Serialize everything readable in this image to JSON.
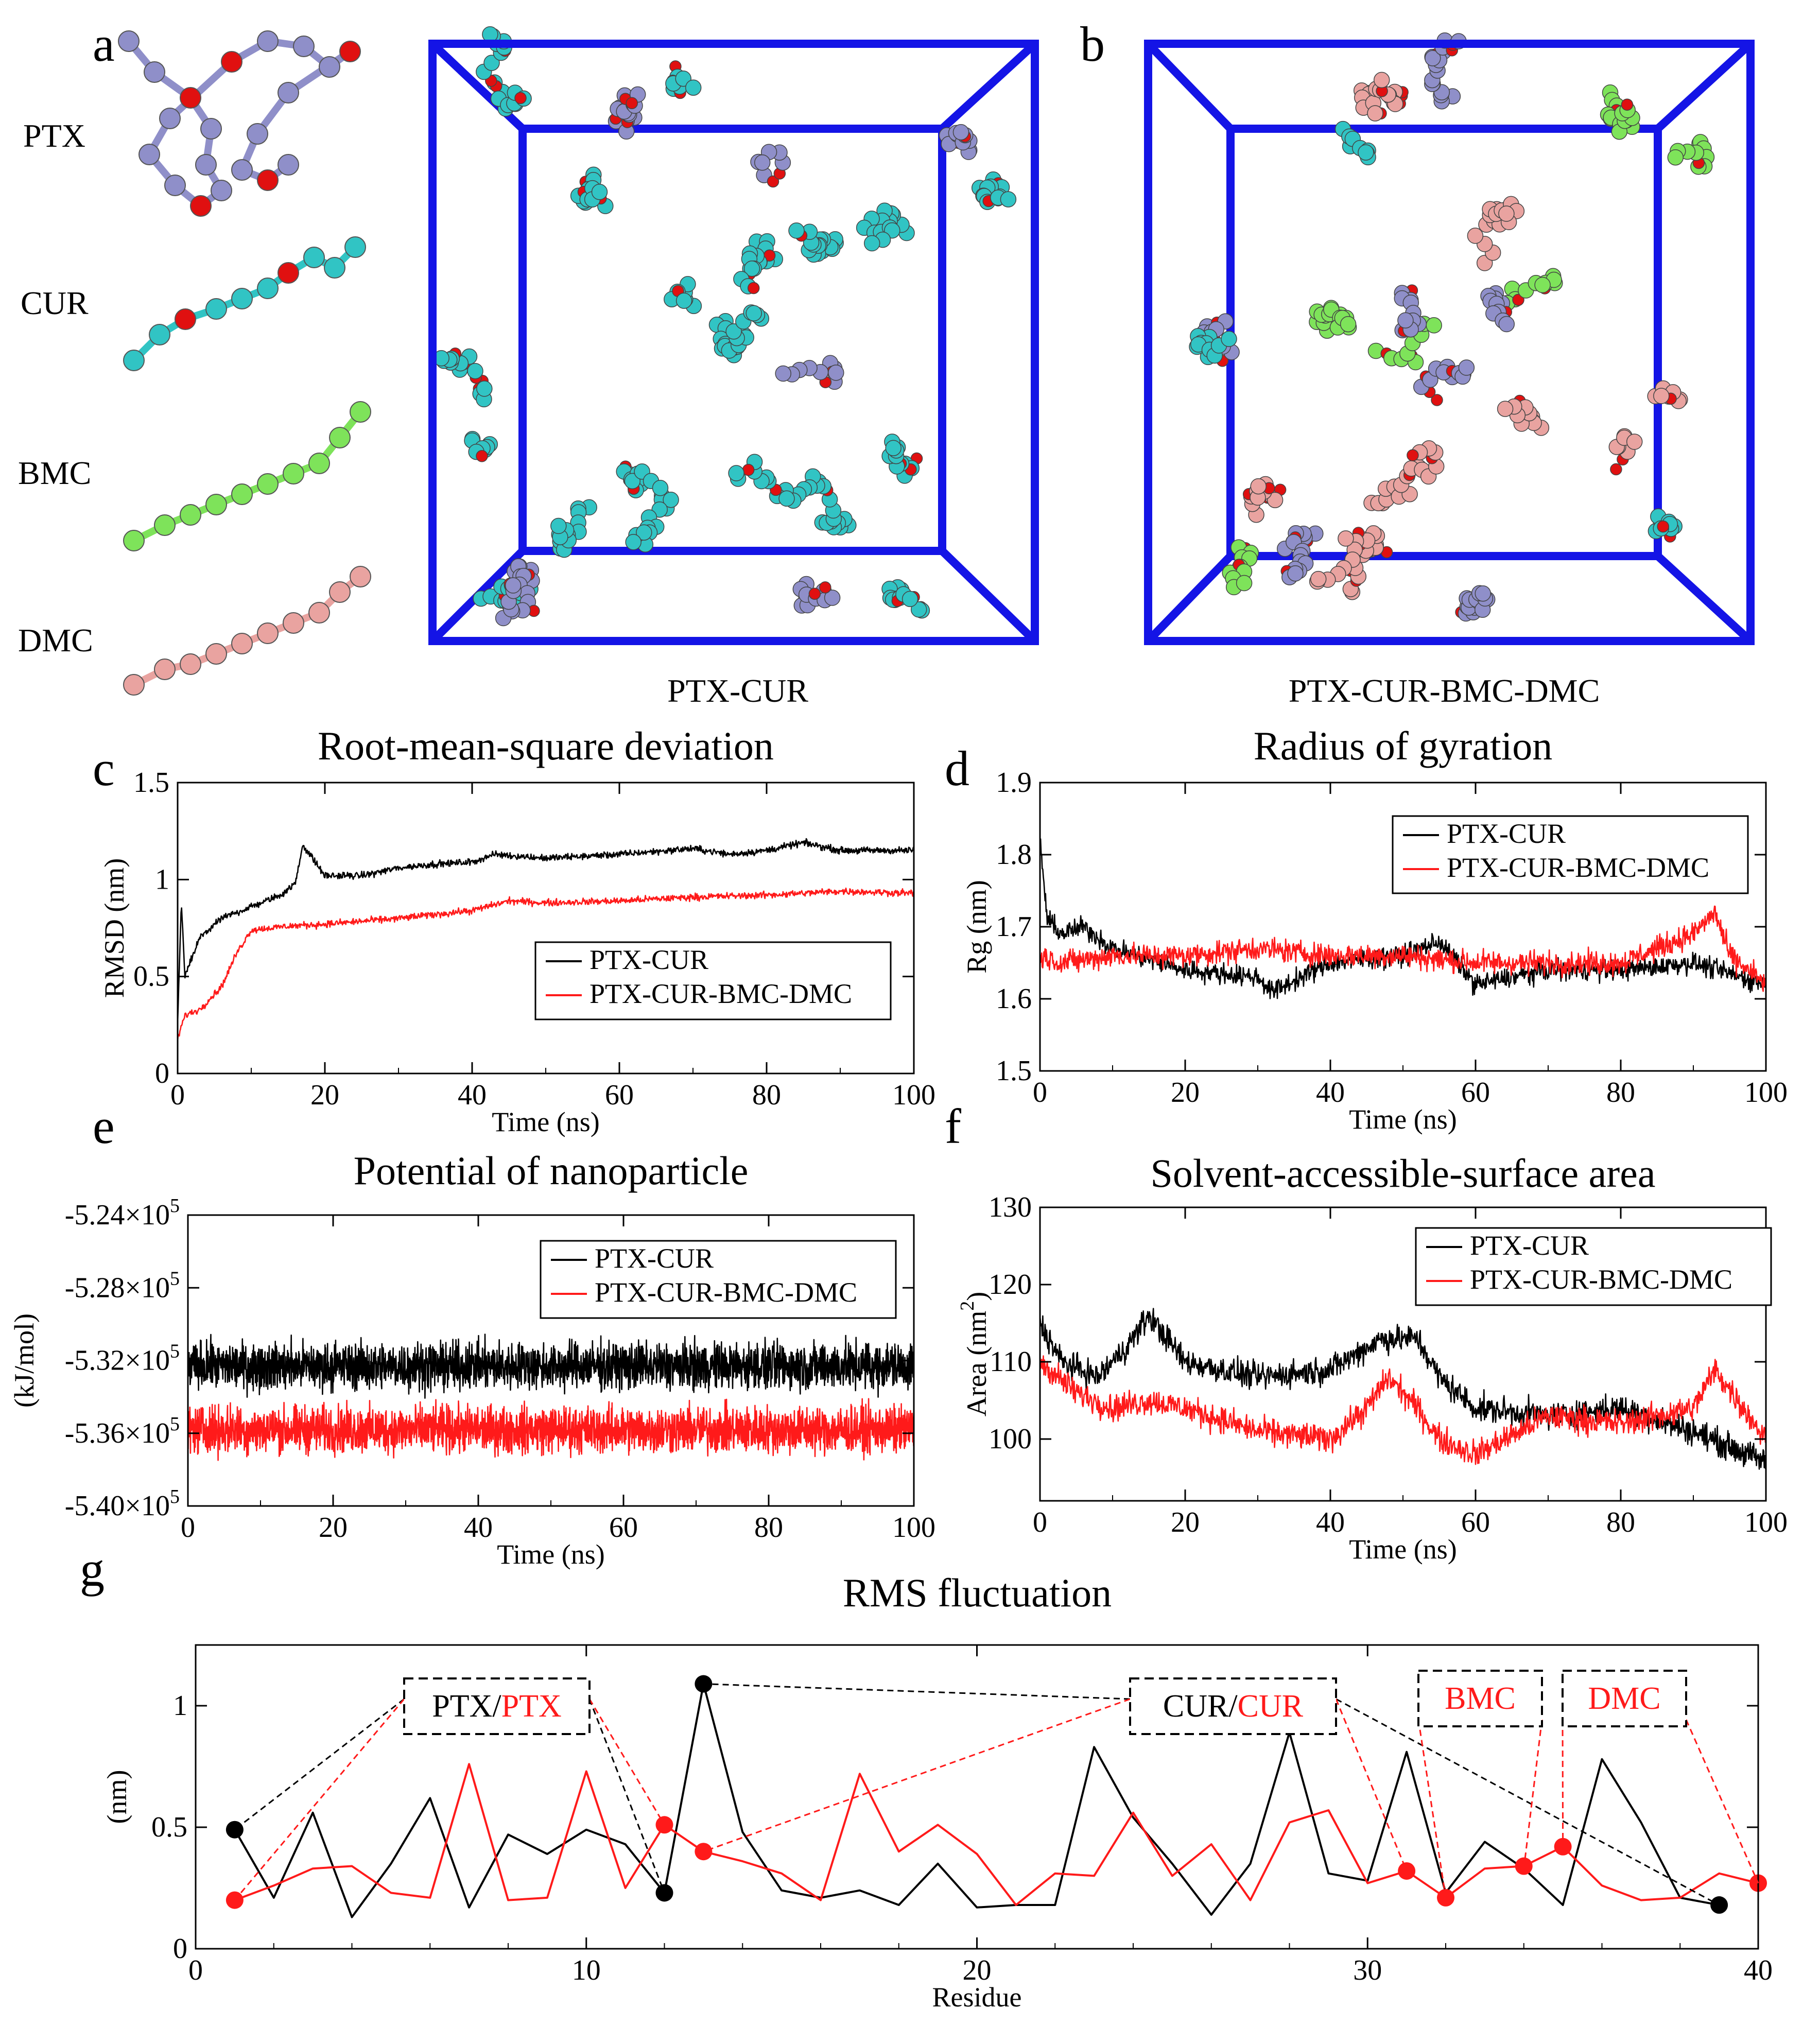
{
  "panel_labels": [
    "a",
    "b",
    "c",
    "d",
    "e",
    "f",
    "g"
  ],
  "molecules": [
    {
      "name": "PTX",
      "color": "#8f8fc9"
    },
    {
      "name": "CUR",
      "color": "#31c4c4"
    },
    {
      "name": "BMC",
      "color": "#7ee35a"
    },
    {
      "name": "DMC",
      "color": "#e9a3a0"
    }
  ],
  "boxes": {
    "a_caption": "PTX-CUR",
    "b_caption": "PTX-CUR-BMC-DMC",
    "frame_color": "#1414e6"
  },
  "colors": {
    "ptx_cur": "#000000",
    "ptx_cur_bmc_dmc": "#ff1a1a",
    "atom_red": "#e01010",
    "atom_blue": "#2020d0"
  },
  "chart_data": [
    {
      "id": "c",
      "type": "line",
      "title": "Root-mean-square deviation",
      "xlabel": "Time (ns)",
      "ylabel": "RMSD (nm)",
      "xlim": [
        0,
        100
      ],
      "ylim": [
        0,
        1.5
      ],
      "xticks": [
        "0",
        "20",
        "40",
        "60",
        "80",
        "100"
      ],
      "yticks": [
        "0",
        "0.5",
        "1",
        "1.5"
      ],
      "legend": [
        "PTX-CUR",
        "PTX-CUR-BMC-DMC"
      ],
      "legend_pos": "bottom-right",
      "series": [
        {
          "name": "PTX-CUR",
          "x": [
            0,
            0.5,
            1,
            3,
            6,
            10,
            14,
            16,
            17,
            20,
            25,
            30,
            35,
            40,
            43,
            50,
            60,
            70,
            75,
            80,
            85,
            90,
            100
          ],
          "y": [
            0.25,
            0.88,
            0.5,
            0.7,
            0.8,
            0.86,
            0.92,
            0.98,
            1.18,
            1.02,
            1.02,
            1.06,
            1.08,
            1.09,
            1.13,
            1.11,
            1.13,
            1.16,
            1.13,
            1.15,
            1.19,
            1.15,
            1.15
          ],
          "noise": 0.015
        },
        {
          "name": "PTX-CUR-BMC-DMC",
          "x": [
            0,
            1,
            3,
            6,
            8,
            10,
            15,
            20,
            30,
            40,
            45,
            50,
            60,
            70,
            80,
            90,
            100
          ],
          "y": [
            0.18,
            0.3,
            0.33,
            0.45,
            0.62,
            0.74,
            0.76,
            0.77,
            0.8,
            0.84,
            0.89,
            0.88,
            0.89,
            0.91,
            0.92,
            0.94,
            0.93
          ],
          "noise": 0.015
        }
      ]
    },
    {
      "id": "d",
      "type": "line",
      "title": "Radius of gyration",
      "xlabel": "Time (ns)",
      "ylabel": "Rg (nm)",
      "xlim": [
        0,
        100
      ],
      "ylim": [
        1.5,
        1.9
      ],
      "xticks": [
        "0",
        "20",
        "40",
        "60",
        "80",
        "100"
      ],
      "yticks": [
        "1.5",
        "1.6",
        "1.7",
        "1.8",
        "1.9"
      ],
      "legend": [
        "PTX-CUR",
        "PTX-CUR-BMC-DMC"
      ],
      "legend_pos": "top-right",
      "series": [
        {
          "name": "PTX-CUR",
          "x": [
            0,
            1,
            3,
            6,
            10,
            20,
            30,
            32,
            40,
            50,
            55,
            60,
            70,
            80,
            90,
            100
          ],
          "y": [
            1.82,
            1.71,
            1.69,
            1.7,
            1.67,
            1.64,
            1.63,
            1.61,
            1.65,
            1.66,
            1.68,
            1.62,
            1.64,
            1.64,
            1.65,
            1.62
          ],
          "noise": 0.012
        },
        {
          "name": "PTX-CUR-BMC-DMC",
          "x": [
            0,
            3,
            10,
            20,
            30,
            40,
            50,
            60,
            70,
            80,
            90,
            93,
            95,
            100
          ],
          "y": [
            1.66,
            1.65,
            1.66,
            1.66,
            1.67,
            1.66,
            1.66,
            1.65,
            1.65,
            1.65,
            1.69,
            1.72,
            1.66,
            1.62
          ],
          "noise": 0.014
        }
      ]
    },
    {
      "id": "e",
      "type": "line",
      "title": "Potential of nanoparticle",
      "xlabel": "Time (ns)",
      "ylabel": "(kJ/mol)",
      "xlim": [
        0,
        100
      ],
      "ylim": [
        -540000,
        -524000
      ],
      "xticks": [
        "0",
        "20",
        "40",
        "60",
        "80",
        "100"
      ],
      "yticks": [
        "-5.40x10^5",
        "-5.36x10^5",
        "-5.32x10^5",
        "-5.28x10^5",
        "-5.24x10^5"
      ],
      "legend": [
        "PTX-CUR",
        "PTX-CUR-BMC-DMC"
      ],
      "legend_pos": "top-right",
      "series": [
        {
          "name": "PTX-CUR",
          "x": [
            0,
            100
          ],
          "y": [
            -532300,
            -532300
          ],
          "noise": 1100
        },
        {
          "name": "PTX-CUR-BMC-DMC",
          "x": [
            0,
            100
          ],
          "y": [
            -535800,
            -535800
          ],
          "noise": 1100
        }
      ]
    },
    {
      "id": "f",
      "type": "line",
      "title": "Solvent-accessible-surface area",
      "xlabel": "Time (ns)",
      "ylabel": "Area (nm^2)",
      "xlim": [
        0,
        100
      ],
      "ylim": [
        92,
        130
      ],
      "xticks": [
        "0",
        "20",
        "40",
        "60",
        "80",
        "100"
      ],
      "yticks": [
        "100",
        "110",
        "120",
        "130"
      ],
      "legend": [
        "PTX-CUR",
        "PTX-CUR-BMC-DMC"
      ],
      "legend_pos": "top-right",
      "series": [
        {
          "name": "PTX-CUR",
          "x": [
            0,
            3,
            8,
            12,
            15,
            20,
            30,
            40,
            47,
            52,
            55,
            60,
            70,
            80,
            90,
            100
          ],
          "y": [
            115,
            110,
            108,
            112,
            116,
            110,
            108,
            109,
            113,
            113,
            108,
            104,
            103,
            104,
            101,
            97
          ],
          "noise": 1.5
        },
        {
          "name": "PTX-CUR-BMC-DMC",
          "x": [
            0,
            5,
            10,
            15,
            20,
            30,
            40,
            45,
            48,
            52,
            55,
            60,
            70,
            80,
            90,
            93,
            100
          ],
          "y": [
            110,
            106,
            104,
            105,
            104,
            101,
            100,
            104,
            108,
            104,
            100,
            98,
            103,
            102,
            104,
            109,
            100
          ],
          "noise": 1.5
        }
      ]
    },
    {
      "id": "g",
      "type": "line",
      "title": "RMS fluctuation",
      "xlabel": "Residue",
      "ylabel": "(nm)",
      "xlim": [
        0,
        40
      ],
      "ylim": [
        0,
        1.25
      ],
      "xticks": [
        "0",
        "10",
        "20",
        "30",
        "40"
      ],
      "yticks": [
        "0",
        "0.5",
        "1"
      ],
      "annotations": [
        {
          "text_black": "PTX/",
          "text_red": "PTX"
        },
        {
          "text_black": "CUR/",
          "text_red": "CUR"
        },
        {
          "text_black": "",
          "text_red": "BMC"
        },
        {
          "text_black": "",
          "text_red": "DMC"
        }
      ],
      "series": [
        {
          "name": "PTX-CUR",
          "x": [
            1,
            2,
            3,
            4,
            5,
            6,
            7,
            8,
            9,
            10,
            11,
            12,
            13,
            14,
            15,
            16,
            17,
            18,
            19,
            20,
            21,
            22,
            23,
            24,
            25,
            26,
            27,
            28,
            29,
            30,
            31,
            32,
            33,
            34,
            35,
            36,
            37,
            38,
            39
          ],
          "y": [
            0.49,
            0.21,
            0.56,
            0.13,
            0.35,
            0.62,
            0.17,
            0.47,
            0.39,
            0.49,
            0.43,
            0.23,
            1.09,
            0.48,
            0.24,
            0.21,
            0.24,
            0.18,
            0.35,
            0.17,
            0.18,
            0.18,
            0.83,
            0.54,
            0.35,
            0.14,
            0.35,
            0.89,
            0.31,
            0.28,
            0.81,
            0.23,
            0.44,
            0.33,
            0.18,
            0.78,
            0.52,
            0.21,
            0.18
          ],
          "markers": [
            1,
            12,
            13,
            39
          ]
        },
        {
          "name": "PTX-CUR-BMC-DMC",
          "x": [
            1,
            2,
            3,
            4,
            5,
            6,
            7,
            8,
            9,
            10,
            11,
            12,
            13,
            14,
            15,
            16,
            17,
            18,
            19,
            20,
            21,
            22,
            23,
            24,
            25,
            26,
            27,
            28,
            29,
            30,
            31,
            32,
            33,
            34,
            35,
            36,
            37,
            38,
            39,
            40
          ],
          "y": [
            0.2,
            0.26,
            0.33,
            0.34,
            0.23,
            0.21,
            0.76,
            0.2,
            0.21,
            0.73,
            0.25,
            0.51,
            0.4,
            0.36,
            0.31,
            0.2,
            0.72,
            0.4,
            0.51,
            0.39,
            0.18,
            0.31,
            0.3,
            0.56,
            0.3,
            0.43,
            0.2,
            0.52,
            0.57,
            0.27,
            0.32,
            0.21,
            0.33,
            0.34,
            0.42,
            0.26,
            0.2,
            0.21,
            0.31,
            0.27
          ],
          "markers": [
            1,
            12,
            13,
            31,
            32,
            34,
            35,
            40
          ]
        }
      ]
    }
  ]
}
